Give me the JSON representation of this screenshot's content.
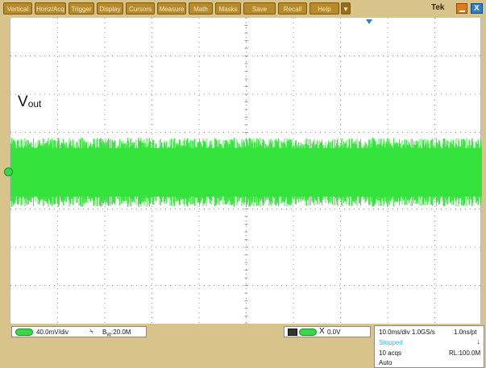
{
  "menu": {
    "items": [
      "Vertical",
      "Horiz/Acq",
      "Trigger",
      "Display",
      "Cursors",
      "Measure",
      "Math",
      "Masks",
      "Save",
      "Recall",
      "Help"
    ],
    "dropdown_glyph": "▼",
    "brand": "Tek"
  },
  "window": {
    "minimize_icon": "minimize-icon",
    "close_icon": "close-icon",
    "close_glyph": "X"
  },
  "waveform": {
    "label_main": "V",
    "label_sub": "out",
    "color": "#33e23a",
    "trigger_marker_color": "#2d7fc8"
  },
  "status": {
    "channel_scale": "40.0mV/div",
    "coupling_glyph": "⍀",
    "bandwidth_symbol": "B",
    "bandwidth_sub": "W",
    "bandwidth": ":20.0M",
    "trigger_glyph": "X",
    "trigger_level": "0.0V",
    "timebase": "10.0ms/div 1.0GS/s",
    "resolution": "1.0ns/pt",
    "run_state": "Stopped",
    "run_glyph": "↓",
    "acquisitions": "10 acqs",
    "record_length": "RL:100.0M",
    "trigger_mode": "Auto"
  }
}
